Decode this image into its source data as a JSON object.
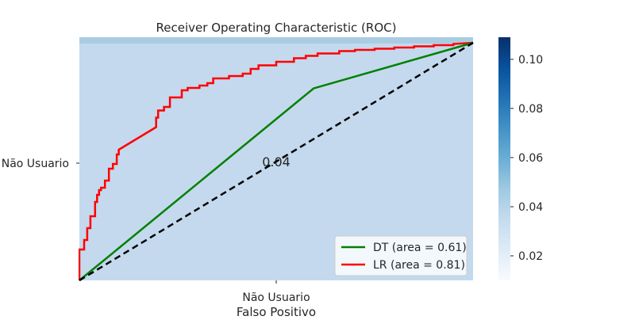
{
  "chart_data": {
    "type": "line",
    "title": "Receiver Operating Characteristic (ROC)",
    "xlabel": "Falso Positivo",
    "x_tick_labels": [
      "Não Usuario"
    ],
    "y_tick_labels": [
      "Não Usuario"
    ],
    "xlim": [
      0,
      1
    ],
    "ylim": [
      0,
      1
    ],
    "grid": false,
    "legend_position": "lower-right",
    "heatmap_cell_annotation": "0.04",
    "heatmap_cell_value": 0.04,
    "colorbar": {
      "min": 0.01,
      "max": 0.109,
      "ticks": [
        0.02,
        0.04,
        0.06,
        0.08,
        0.1
      ],
      "tick_labels": [
        "0.02",
        "0.04",
        "0.06",
        "0.08",
        "0.10"
      ],
      "colormap": "Blues"
    },
    "series": [
      {
        "name": "DT (area = 0.61)",
        "color": "#008000",
        "style": "solid",
        "x": [
          0,
          0.595,
          1
        ],
        "y": [
          0,
          0.808,
          1
        ]
      },
      {
        "name": "LR (area = 0.81)",
        "color": "#ff0000",
        "style": "solid",
        "x": [
          0,
          0,
          0.012,
          0.012,
          0.02,
          0.02,
          0.028,
          0.028,
          0.04,
          0.04,
          0.045,
          0.045,
          0.05,
          0.05,
          0.055,
          0.055,
          0.065,
          0.065,
          0.075,
          0.075,
          0.085,
          0.085,
          0.095,
          0.095,
          0.1,
          0.1,
          0.11,
          0.12,
          0.13,
          0.14,
          0.15,
          0.165,
          0.18,
          0.195,
          0.195,
          0.2,
          0.2,
          0.215,
          0.215,
          0.23,
          0.23,
          0.26,
          0.26,
          0.275,
          0.275,
          0.305,
          0.305,
          0.325,
          0.325,
          0.34,
          0.34,
          0.38,
          0.38,
          0.415,
          0.415,
          0.435,
          0.435,
          0.455,
          0.455,
          0.5,
          0.5,
          0.545,
          0.545,
          0.575,
          0.575,
          0.605,
          0.605,
          0.66,
          0.66,
          0.7,
          0.7,
          0.75,
          0.75,
          0.8,
          0.8,
          0.85,
          0.85,
          0.9,
          0.9,
          0.95,
          0.95,
          1
        ],
        "y": [
          0,
          0.13,
          0.13,
          0.17,
          0.17,
          0.22,
          0.22,
          0.27,
          0.27,
          0.33,
          0.33,
          0.36,
          0.36,
          0.38,
          0.38,
          0.39,
          0.39,
          0.42,
          0.42,
          0.47,
          0.47,
          0.49,
          0.49,
          0.53,
          0.53,
          0.55,
          0.56,
          0.57,
          0.58,
          0.59,
          0.6,
          0.615,
          0.63,
          0.645,
          0.685,
          0.685,
          0.715,
          0.715,
          0.73,
          0.73,
          0.77,
          0.77,
          0.8,
          0.8,
          0.81,
          0.81,
          0.82,
          0.82,
          0.83,
          0.83,
          0.85,
          0.85,
          0.86,
          0.86,
          0.87,
          0.87,
          0.89,
          0.89,
          0.905,
          0.905,
          0.92,
          0.92,
          0.935,
          0.935,
          0.945,
          0.945,
          0.955,
          0.955,
          0.965,
          0.965,
          0.97,
          0.97,
          0.975,
          0.975,
          0.98,
          0.98,
          0.985,
          0.985,
          0.99,
          0.99,
          0.995,
          1
        ]
      },
      {
        "name": "",
        "color": "#000000",
        "style": "dashed",
        "x": [
          0,
          1
        ],
        "y": [
          0,
          1
        ]
      }
    ]
  }
}
